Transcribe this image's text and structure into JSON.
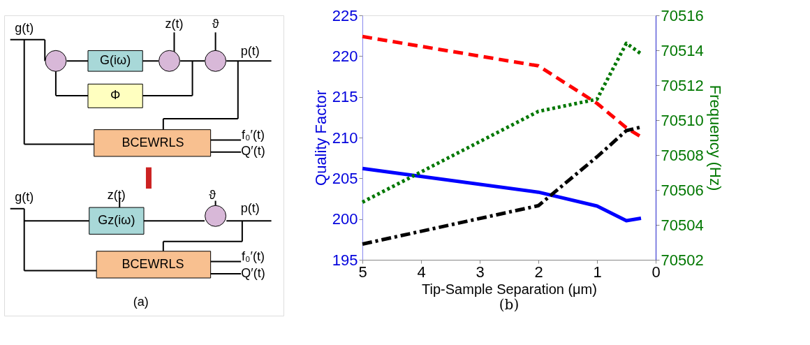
{
  "chart_data": [
    {
      "type": "other",
      "annotations": [
        "g(t)",
        "G(iω)",
        "z(t)",
        "ϑ",
        "p(t)",
        "Φ",
        "BCEWRLS",
        "f₀′(t)",
        "Q′(t)",
        "g(t)",
        "z(t)",
        "Gz(iω)",
        "ϑ",
        "p(t)",
        "BCEWRLS",
        "f₀′(t)",
        "Q′(t)",
        "(a)"
      ]
    },
    {
      "type": "line",
      "x": [
        5,
        2,
        1,
        0.5,
        0.25
      ],
      "xlim": [
        5,
        0
      ],
      "xticks": [
        5,
        4,
        3,
        2,
        1,
        0
      ],
      "ylim": [
        195,
        225
      ],
      "yticks": [
        195,
        200,
        205,
        210,
        215,
        220,
        225
      ],
      "y2lim": [
        70502,
        70516
      ],
      "y2ticks": [
        70502,
        70504,
        70506,
        70508,
        70510,
        70512,
        70514,
        70516
      ],
      "xlabel": "Tip-Sample Separation (μm)",
      "ylabel": "Quality Factor",
      "y2label": "Frequency (Hz)",
      "grid": false,
      "annotations": [
        "(b)"
      ],
      "series": [
        {
          "color": "#0000ff",
          "line_style": "solid",
          "values": [
            206.2,
            203.3,
            201.6,
            199.8,
            200.1
          ]
        },
        {
          "color": "#ff0000",
          "line_style": "dashed",
          "values": [
            222.4,
            218.8,
            214.2,
            211.2,
            210.1
          ]
        },
        {
          "color": "#007700",
          "line_style": "dotted",
          "axis": "y2",
          "values": [
            70505.3,
            70510.5,
            70511.2,
            70514.4,
            70513.8
          ]
        },
        {
          "color": "#000000",
          "line_style": "dashdot",
          "axis": "y2",
          "values": [
            70502.9,
            70505.1,
            70507.9,
            70509.4,
            70509.6
          ]
        }
      ]
    }
  ]
}
